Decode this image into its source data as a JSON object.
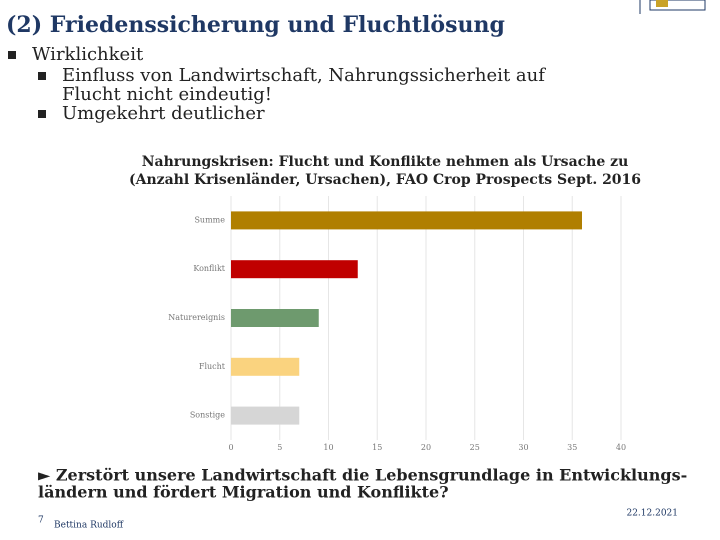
{
  "header": {
    "title": "(2) Friedenssicherung  und Fluchtlösung"
  },
  "bullets": [
    {
      "text": [
        "Wirklichkeit"
      ],
      "level": 1
    },
    {
      "text": [
        "Einfluss von  Landwirtschaft, Nahrungssicherheit auf",
        "Flucht nicht eindeutig!"
      ],
      "level": 2
    },
    {
      "text": [
        "Umgekehrt deutlicher"
      ],
      "level": 2
    }
  ],
  "chart_data": {
    "type": "bar",
    "orientation": "horizontal",
    "title": "Nahrungskrisen: Flucht und Konflikte nehmen als Ursache zu",
    "subtitle": "(Anzahl Krisenländer, Ursachen), FAO Crop Prospects Sept. 2016",
    "categories": [
      "Summe",
      "Konflikt",
      "Naturereignis",
      "Flucht",
      "Sonstige"
    ],
    "values": [
      36,
      13,
      9,
      7,
      7
    ],
    "colors": [
      "#b07f00",
      "#c00000",
      "#6e9a6e",
      "#fad37f",
      "#d6d6d6"
    ],
    "xlim": [
      0,
      40
    ],
    "xticks": [
      0,
      5,
      10,
      15,
      20,
      25,
      30,
      35,
      40
    ],
    "grid": true
  },
  "conclusion": [
    "►  Zerstört unsere  Landwirtschaft die Lebensgrundlage in Entwicklungs-",
    "ländern und fördert Migration und Konflikte?"
  ],
  "footer": {
    "page": "7",
    "author": "Bettina Rudloff",
    "date": "22.12.2021"
  }
}
